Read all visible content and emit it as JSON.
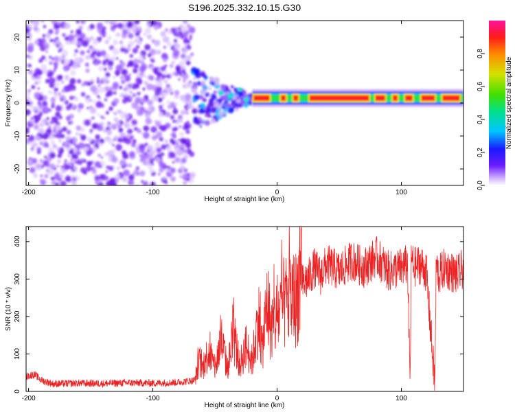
{
  "title": "S196.2025.332.10.15.G30",
  "chart_data": [
    {
      "type": "heatmap",
      "name": "spectrogram",
      "xlabel": "Height of straight line (km)",
      "ylabel": "Frequency (Hz)",
      "xlim": [
        -202,
        150
      ],
      "ylim": [
        -25,
        25
      ],
      "xticks": [
        -200,
        -100,
        0,
        100
      ],
      "xtick_labels": [
        "-200",
        "-100",
        "0",
        "100"
      ],
      "yticks": [
        -20,
        -10,
        0,
        10,
        20
      ],
      "ytick_labels": [
        "-20",
        "-10",
        "0",
        "10",
        "20"
      ],
      "regions": [
        {
          "x_from": -202,
          "x_to": -68,
          "y_from": -25,
          "y_to": 25,
          "amplitude": 0.08,
          "description": "scattered noise"
        },
        {
          "x_from": -68,
          "x_to": -20,
          "y_from": -8,
          "y_to": 8,
          "amplitude": 0.2,
          "description": "transition"
        },
        {
          "x_from": -20,
          "x_to": 150,
          "y_from": 0,
          "y_to": 3,
          "amplitude": 0.95,
          "description": "signal band"
        }
      ],
      "colorbar": {
        "label": "Normalized spectral amplitude",
        "range": [
          0,
          1
        ],
        "ticks": [
          0,
          0.2,
          0.4,
          0.6,
          0.8
        ],
        "tick_labels": [
          "0.0",
          "0.2",
          "0.4",
          "0.6",
          "0.8"
        ]
      }
    },
    {
      "type": "line",
      "name": "snr",
      "xlabel": "Height of straight line (km)",
      "ylabel": "SNR (10 * v/v)",
      "xlim": [
        -202,
        150
      ],
      "ylim": [
        0,
        440
      ],
      "xticks": [
        -200,
        -100,
        0,
        100
      ],
      "xtick_labels": [
        "-200",
        "-100",
        "0",
        "100"
      ],
      "yticks": [
        0,
        100,
        200,
        300,
        400
      ],
      "ytick_labels": [
        "0",
        "100",
        "200",
        "300",
        "400"
      ],
      "color": "#ee2222",
      "x": [
        -202,
        -195,
        -190,
        -180,
        -160,
        -140,
        -120,
        -100,
        -80,
        -66,
        -63,
        -60,
        -55,
        -50,
        -45,
        -40,
        -35,
        -30,
        -25,
        -20,
        -15,
        -12,
        -8,
        -5,
        0,
        5,
        10,
        15,
        18,
        20,
        25,
        30,
        35,
        40,
        50,
        60,
        70,
        80,
        90,
        100,
        105,
        107,
        108,
        110,
        115,
        120,
        127,
        128,
        130,
        135,
        140,
        145,
        150
      ],
      "values": [
        40,
        45,
        30,
        20,
        22,
        21,
        23,
        22,
        24,
        30,
        80,
        60,
        110,
        60,
        140,
        60,
        150,
        70,
        120,
        80,
        200,
        110,
        240,
        170,
        200,
        230,
        250,
        245,
        290,
        285,
        300,
        330,
        310,
        340,
        320,
        350,
        330,
        360,
        320,
        330,
        340,
        15,
        360,
        330,
        340,
        320,
        15,
        340,
        310,
        330,
        320,
        310,
        330
      ]
    }
  ]
}
